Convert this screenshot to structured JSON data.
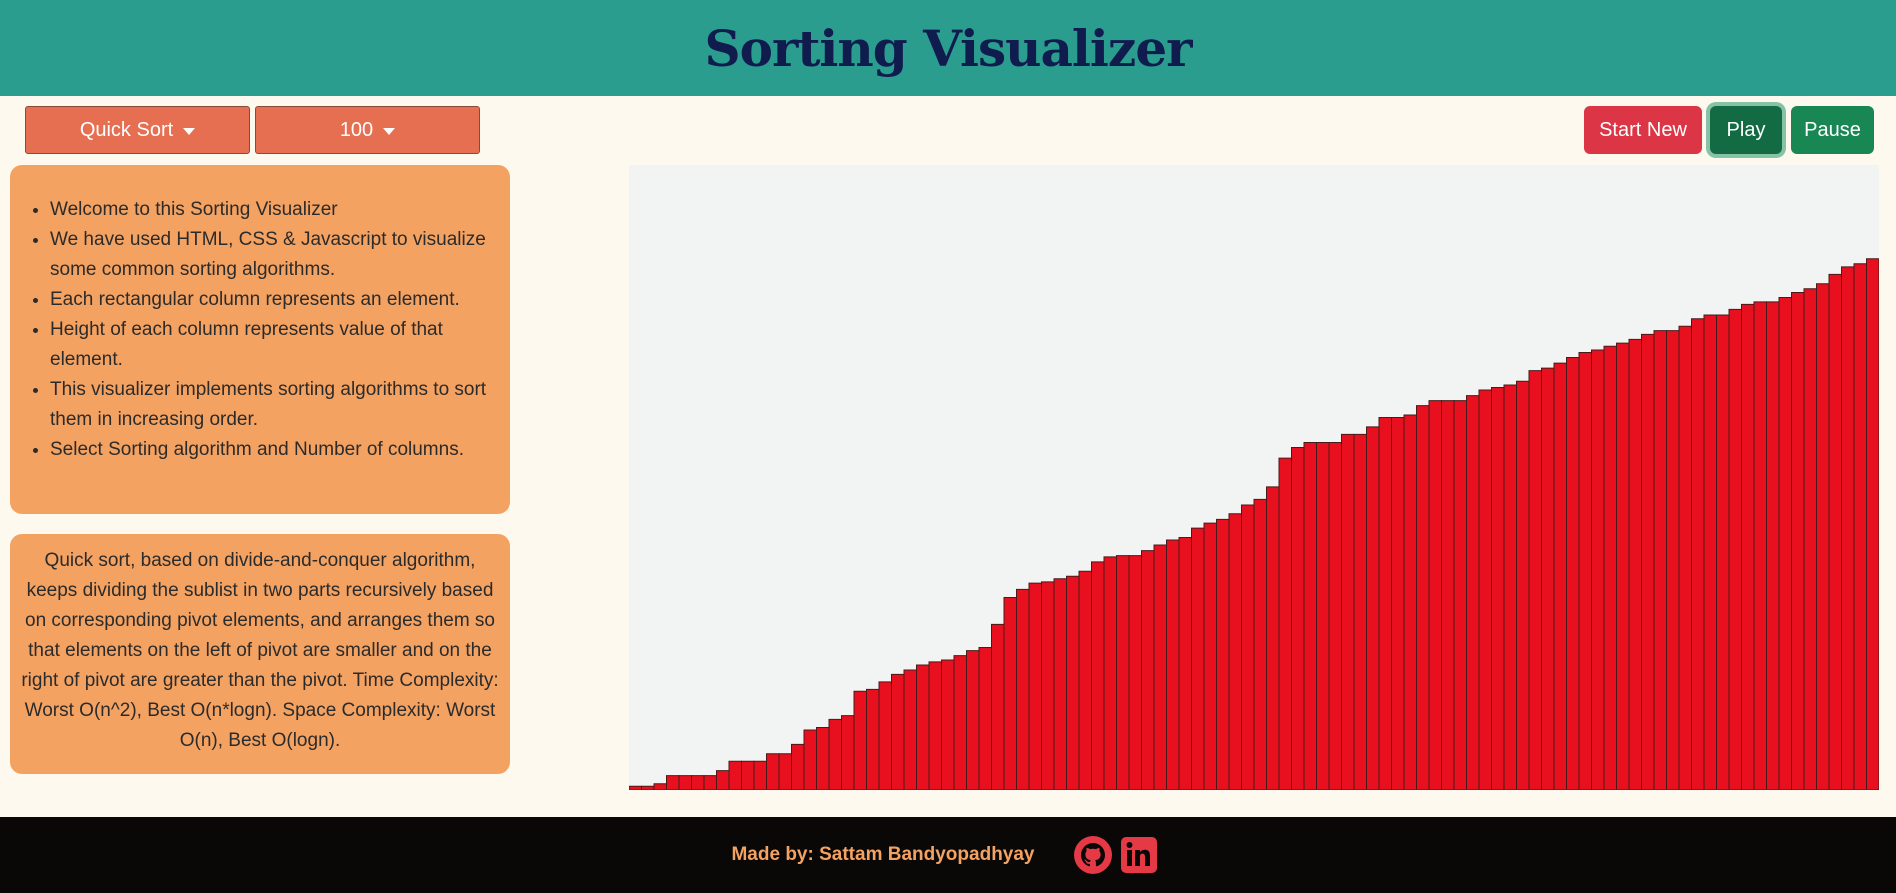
{
  "header": {
    "title": "Sorting Visualizer"
  },
  "controls": {
    "algorithm_dropdown": "Quick Sort",
    "size_dropdown": "100",
    "start_new": "Start New",
    "play": "Play",
    "pause": "Pause"
  },
  "info": {
    "items": [
      "Welcome to this Sorting Visualizer",
      "We have used HTML, CSS & Javascript to visualize some common sorting algorithms.",
      "Each rectangular column represents an element.",
      "Height of each column represents value of that element.",
      "This visualizer implements sorting algorithms to sort them in increasing order.",
      "Select Sorting algorithm and Number of columns."
    ]
  },
  "algorithm_description": "Quick sort, based on divide-and-conquer algorithm, keeps dividing the sublist in two parts recursively based on corresponding pivot elements, and arranges them so that elements on the left of pivot are smaller and on the right of pivot are greater than the pivot. Time Complexity: Worst O(n^2), Best O(n*logn). Space Complexity: Worst O(n), Best O(logn).",
  "footer": {
    "credit": "Made by: Sattam Bandyopadhyay",
    "icons": [
      "github-icon",
      "linkedin-icon"
    ]
  },
  "colors": {
    "header_bg": "#2a9d8f",
    "page_bg": "#fef9ee",
    "panel_bg": "#f4a261",
    "dropdown_bg": "#e76f51",
    "bar_fill": "#e8101e",
    "bar_stroke": "#4a1a1a",
    "start_new": "#dc3545",
    "play": "#136b44",
    "pause": "#198754",
    "footer_bg": "#0a0807"
  },
  "chart_data": {
    "type": "bar",
    "description": "100 columns sorted in increasing order",
    "ylim": [
      0,
      100
    ],
    "values": [
      0.6,
      0.6,
      1.0,
      2.3,
      2.3,
      2.3,
      2.3,
      3.1,
      4.6,
      4.6,
      4.6,
      5.8,
      5.8,
      7.3,
      9.6,
      10.0,
      11.3,
      11.9,
      15.8,
      16.1,
      17.3,
      18.5,
      19.2,
      20.0,
      20.5,
      20.8,
      21.5,
      22.3,
      22.8,
      26.5,
      30.8,
      32.1,
      33.1,
      33.3,
      33.8,
      34.2,
      35.0,
      36.5,
      37.3,
      37.5,
      37.5,
      38.3,
      39.2,
      40.0,
      40.4,
      41.9,
      42.7,
      43.3,
      44.2,
      45.6,
      46.5,
      48.5,
      53.1,
      54.8,
      55.6,
      55.6,
      55.6,
      56.9,
      56.9,
      58.1,
      59.6,
      59.6,
      60.0,
      61.5,
      62.3,
      62.3,
      62.3,
      63.1,
      64.0,
      64.4,
      64.8,
      65.4,
      67.1,
      67.5,
      68.3,
      69.2,
      70.0,
      70.4,
      71.0,
      71.5,
      72.1,
      72.9,
      73.5,
      73.5,
      74.2,
      75.4,
      76.0,
      76.0,
      76.9,
      77.7,
      78.1,
      78.1,
      78.8,
      79.6,
      80.2,
      81.0,
      82.5,
      83.7,
      84.2,
      85.0
    ]
  }
}
